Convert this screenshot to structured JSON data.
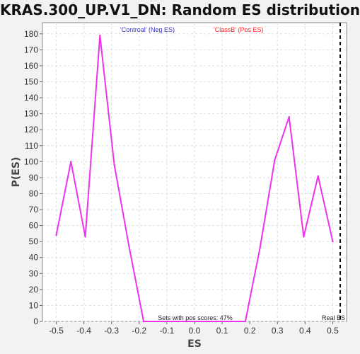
{
  "chart_data": {
    "type": "line",
    "title": "KRAS.300_UP.V1_DN: Random ES distribution",
    "xlabel": "ES",
    "ylabel": "P(ES)",
    "xlim": [
      -0.55,
      0.55
    ],
    "ylim": [
      0,
      187
    ],
    "x_ticks": [
      "-0.5",
      "-0.4",
      "-0.3",
      "-0.2",
      "-0.1",
      "0.0",
      "0.1",
      "0.2",
      "0.3",
      "0.4",
      "0.5"
    ],
    "y_ticks": [
      "0",
      "10",
      "20",
      "30",
      "40",
      "50",
      "60",
      "70",
      "80",
      "90",
      "100",
      "110",
      "120",
      "130",
      "140",
      "150",
      "160",
      "170",
      "180"
    ],
    "grid": true,
    "legend": [
      {
        "label": "'Controal' (Neg ES)",
        "color": "#3333cc"
      },
      {
        "label": "'ClassB' (Pos ES)",
        "color": "#ff2222"
      }
    ],
    "annotations": {
      "pos_scores": "Sets with pos scores: 47%",
      "real_es": "Real ES"
    },
    "real_es_x": 0.527,
    "series": [
      {
        "color": "#ee33ee",
        "x": [
          -0.5,
          -0.447,
          -0.395,
          -0.342,
          -0.29,
          -0.237,
          -0.184,
          -0.132,
          -0.079,
          -0.026,
          0.026,
          0.079,
          0.132,
          0.184,
          0.237,
          0.29,
          0.342,
          0.395,
          0.447,
          0.5
        ],
        "y": [
          54,
          100,
          53,
          179,
          98,
          47,
          0,
          0,
          0,
          0,
          0,
          0,
          0,
          0,
          46,
          101,
          128,
          53,
          91,
          50
        ]
      }
    ]
  }
}
